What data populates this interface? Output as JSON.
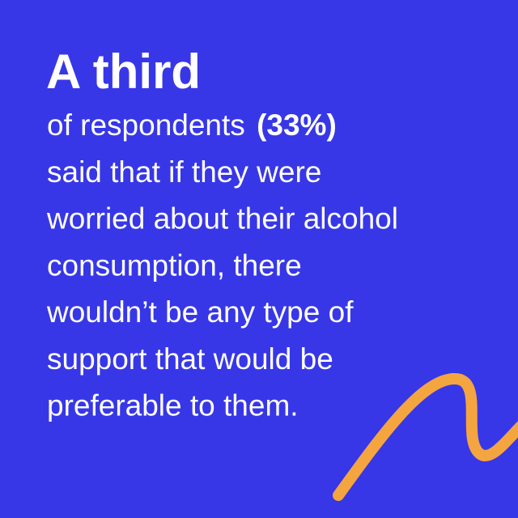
{
  "headline": "A third",
  "body": {
    "first_line": {
      "text": "of respondents",
      "statistic": "(33%)"
    },
    "lines": [
      "said that if they were",
      "worried about their alcohol",
      "consumption, there",
      "wouldn’t be any type of",
      "support that would be",
      "preferable to them."
    ]
  }
}
